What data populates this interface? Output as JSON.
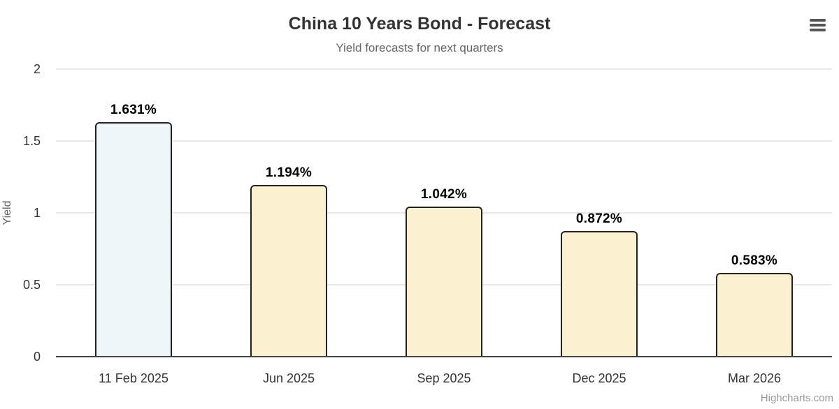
{
  "header": {
    "title": "China 10 Years Bond - Forecast",
    "subtitle": "Yield forecasts for next quarters"
  },
  "icons": {
    "menu": "hamburger-icon"
  },
  "credits": "Highcharts.com",
  "colors": {
    "title": "#333333",
    "subtitle": "#666666",
    "axis_label": "#333333",
    "axis_title": "#666666",
    "gridline": "#e7e7e7",
    "axis_line": "#444444",
    "bar_border": "#222222",
    "highlight_bar_fill": "#eff6fa",
    "forecast_bar_fill": "#fbf0d0",
    "data_label": "#000000",
    "credits_text": "#999999",
    "menu_icon": "#555555"
  },
  "chart_data": {
    "type": "bar",
    "title": "China 10 Years Bond - Forecast",
    "subtitle": "Yield forecasts for next quarters",
    "categories": [
      "11 Feb 2025",
      "Jun 2025",
      "Sep 2025",
      "Dec 2025",
      "Mar 2026"
    ],
    "values": [
      1.631,
      1.194,
      1.042,
      0.872,
      0.583
    ],
    "data_labels": [
      "1.631%",
      "1.194%",
      "1.042%",
      "0.872%",
      "0.583%"
    ],
    "bar_colors": [
      "#eff6fa",
      "#fbf0d0",
      "#fbf0d0",
      "#fbf0d0",
      "#fbf0d0"
    ],
    "xlabel": "",
    "ylabel": "Yield",
    "ylim": [
      0,
      2
    ],
    "yticks": [
      0,
      0.5,
      1,
      1.5,
      2
    ],
    "ytick_labels": [
      "0",
      "0.5",
      "1",
      "1.5",
      "2"
    ],
    "grid": true,
    "legend": "none"
  }
}
